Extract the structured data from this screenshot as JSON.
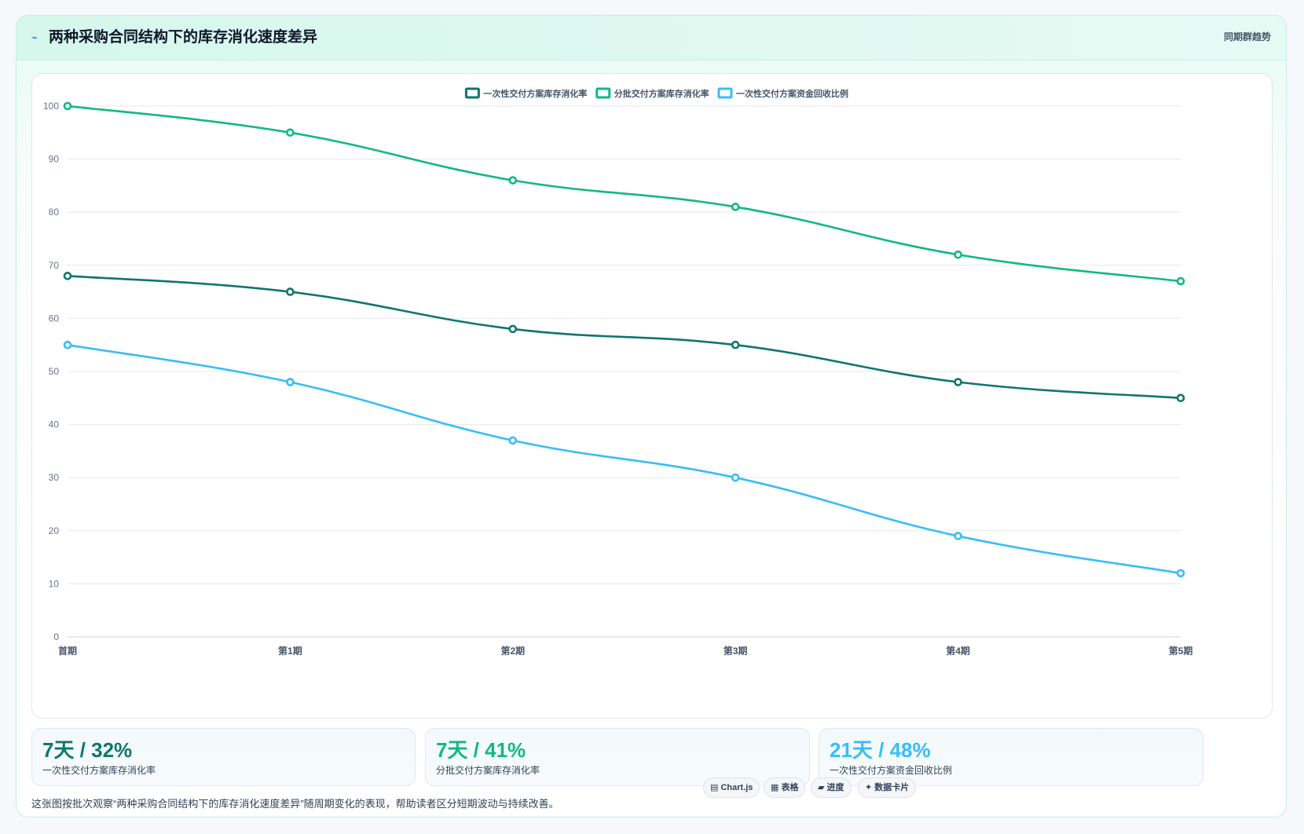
{
  "header": {
    "icon": "pulse-icon",
    "icon_glyph": "⌁",
    "title": "两种采购合同结构下的库存消化速度差异",
    "tag": "同期群趋势"
  },
  "colors": {
    "series1": "#0f766e",
    "series2": "#10b981",
    "series3": "#38bdf8",
    "grid": "#e5e7eb",
    "axis_text": "#64748b"
  },
  "chart_data": {
    "type": "line",
    "title": "",
    "xlabel": "",
    "ylabel": "",
    "categories": [
      "首期",
      "第1期",
      "第2期",
      "第3期",
      "第4期",
      "第5期"
    ],
    "ylim": [
      0,
      100
    ],
    "yticks": [
      0,
      10,
      20,
      30,
      40,
      50,
      60,
      70,
      80,
      90,
      100
    ],
    "grid": true,
    "legend_position": "top-center",
    "series": [
      {
        "name": "一次性交付方案库存消化率",
        "color": "#0f766e",
        "values": [
          68,
          65,
          58,
          55,
          48,
          45
        ]
      },
      {
        "name": "分批交付方案库存消化率",
        "color": "#10b981",
        "values": [
          100,
          95,
          86,
          81,
          72,
          67
        ]
      },
      {
        "name": "一次性交付方案资金回收比例",
        "color": "#38bdf8",
        "values": [
          55,
          48,
          37,
          30,
          19,
          12
        ]
      }
    ]
  },
  "stats": [
    {
      "value": "7天 / 32%",
      "label": "一次性交付方案库存消化率",
      "color": "#0f766e"
    },
    {
      "value": "7天 / 41%",
      "label": "分批交付方案库存消化率",
      "color": "#10b981"
    },
    {
      "value": "21天 / 48%",
      "label": "一次性交付方案资金回收比例",
      "color": "#38bdf8"
    }
  ],
  "footer": {
    "caption": "这张图按批次观察“两种采购合同结构下的库存消化速度差异”随周期变化的表现，帮助读者区分短期波动与持续改善。",
    "tags": [
      {
        "icon": "chart-icon",
        "glyph": "▤",
        "label": "Chart.js"
      },
      {
        "icon": "table-icon",
        "glyph": "▦",
        "label": "表格"
      },
      {
        "icon": "progress-icon",
        "glyph": "▰",
        "label": "进度"
      },
      {
        "icon": "sparkle-icon",
        "glyph": "✦",
        "label": "数据卡片"
      }
    ]
  }
}
